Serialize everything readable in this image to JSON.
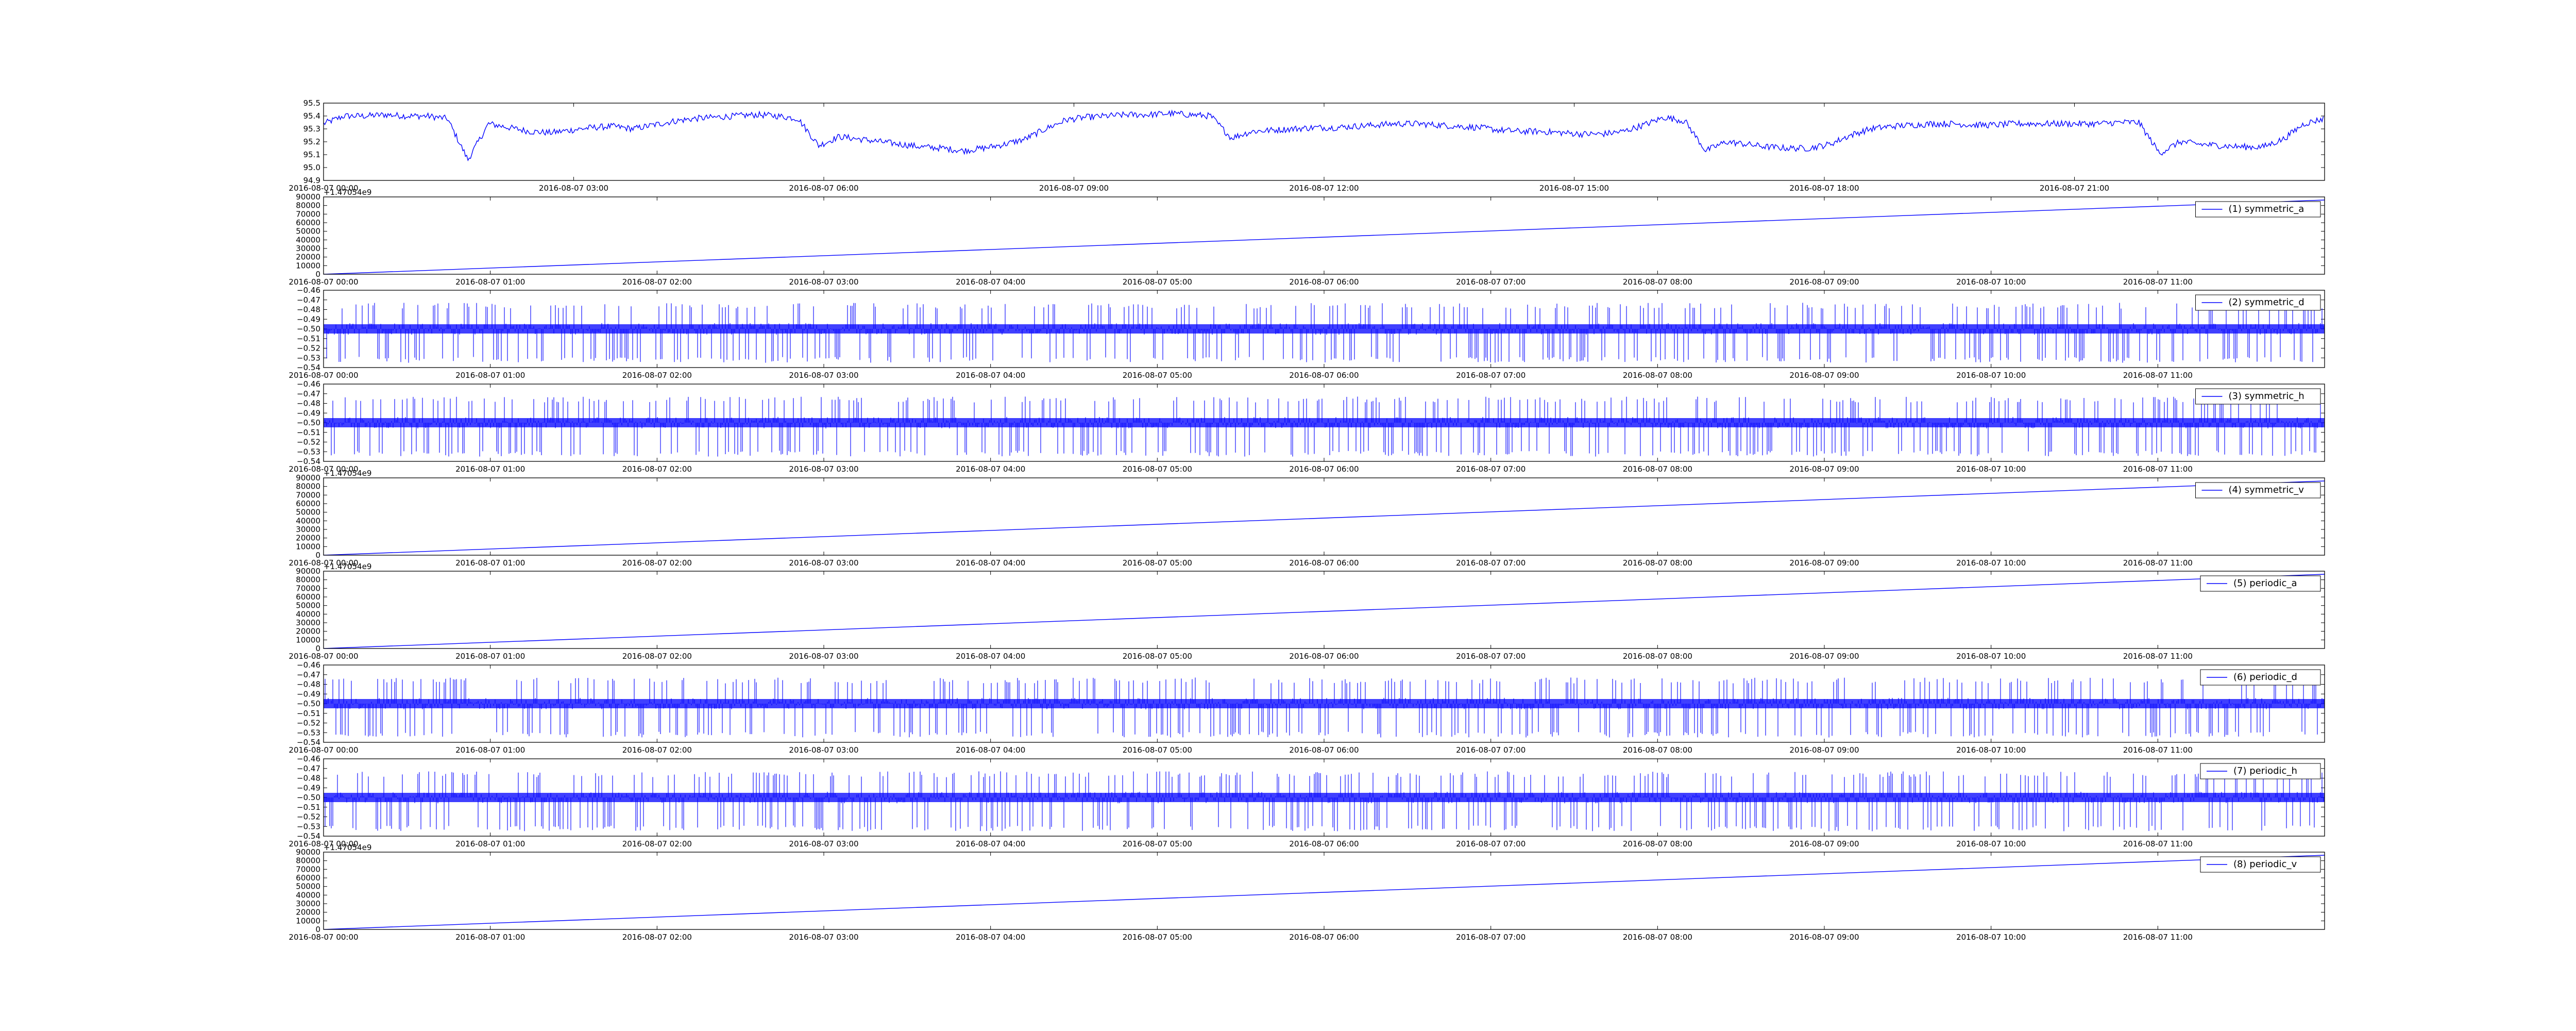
{
  "colors": {
    "line": "#0000ff",
    "axes": "#000000",
    "background": "#ffffff"
  },
  "chart_data": [
    {
      "id": "p0",
      "type": "line",
      "signal": "drift",
      "x": {
        "start": "2016-08-07 00:00",
        "end": "2016-08-08 00:00"
      },
      "xticks": [
        "2016-08-07 00:00",
        "2016-08-07 03:00",
        "2016-08-07 06:00",
        "2016-08-07 09:00",
        "2016-08-07 12:00",
        "2016-08-07 15:00",
        "2016-08-07 18:00",
        "2016-08-07 21:00"
      ],
      "ylim": [
        94.9,
        95.5
      ],
      "yticks": [
        "94.9",
        "95.0",
        "95.1",
        "95.2",
        "95.3",
        "95.4",
        "95.5"
      ],
      "offset_text": "",
      "legend": "",
      "series": [
        {
          "values": [
            95.34,
            95.4,
            95.4,
            95.41,
            95.4,
            95.4,
            95.38,
            95.06,
            95.34,
            95.31,
            95.28,
            95.27,
            95.29,
            95.31,
            95.32,
            95.3,
            95.33,
            95.36,
            95.38,
            95.39,
            95.4,
            95.41,
            95.4,
            95.38,
            95.17,
            95.24,
            95.22,
            95.2,
            95.18,
            95.16,
            95.15,
            95.13,
            95.15,
            95.18,
            95.22,
            95.3,
            95.37,
            95.39,
            95.4,
            95.41,
            95.41,
            95.42,
            95.41,
            95.4,
            95.23,
            95.28,
            95.29,
            95.3,
            95.31,
            95.31,
            95.32,
            95.33,
            95.34,
            95.34,
            95.33,
            95.32,
            95.31,
            95.29,
            95.28,
            95.28,
            95.27,
            95.26,
            95.26,
            95.28,
            95.33,
            95.39,
            95.36,
            95.13,
            95.2,
            95.18,
            95.16,
            95.15,
            95.15,
            95.18,
            95.25,
            95.3,
            95.32,
            95.33,
            95.34,
            95.34,
            95.33,
            95.33,
            95.34,
            95.34,
            95.34,
            95.34,
            95.34,
            95.35,
            95.35,
            95.11,
            95.2,
            95.18,
            95.17,
            95.16,
            95.16,
            95.22,
            95.34,
            95.38
          ]
        }
      ]
    },
    {
      "id": "p1",
      "type": "line",
      "signal": "ramp",
      "x": {
        "start": "2016-08-07 00:00",
        "end": "2016-08-07 12:00"
      },
      "xticks": [
        "2016-08-07 00:00",
        "2016-08-07 01:00",
        "2016-08-07 02:00",
        "2016-08-07 03:00",
        "2016-08-07 04:00",
        "2016-08-07 05:00",
        "2016-08-07 06:00",
        "2016-08-07 07:00",
        "2016-08-07 08:00",
        "2016-08-07 09:00",
        "2016-08-07 10:00",
        "2016-08-07 11:00"
      ],
      "ylim": [
        0,
        90000
      ],
      "yticks": [
        "0",
        "10000",
        "20000",
        "30000",
        "40000",
        "50000",
        "60000",
        "70000",
        "80000",
        "90000"
      ],
      "offset_text": "+1.47054e9",
      "legend": "(1) symmetric_a",
      "series": [
        {
          "values": [
            0,
            86400
          ]
        }
      ]
    },
    {
      "id": "p2",
      "type": "line",
      "signal": "spikes",
      "x": {
        "start": "2016-08-07 00:00",
        "end": "2016-08-07 12:00"
      },
      "xticks": [
        "2016-08-07 00:00",
        "2016-08-07 01:00",
        "2016-08-07 02:00",
        "2016-08-07 03:00",
        "2016-08-07 04:00",
        "2016-08-07 05:00",
        "2016-08-07 06:00",
        "2016-08-07 07:00",
        "2016-08-07 08:00",
        "2016-08-07 09:00",
        "2016-08-07 10:00",
        "2016-08-07 11:00"
      ],
      "ylim": [
        -0.54,
        -0.46
      ],
      "yticks": [
        "−0.54",
        "−0.53",
        "−0.52",
        "−0.51",
        "−0.50",
        "−0.49",
        "−0.48",
        "−0.47",
        "−0.46"
      ],
      "offset_text": "",
      "legend": "(2) symmetric_d",
      "series": [
        {
          "baseline": -0.5,
          "low": -0.535,
          "high": -0.473
        }
      ]
    },
    {
      "id": "p3",
      "type": "line",
      "signal": "spikes",
      "x": {
        "start": "2016-08-07 00:00",
        "end": "2016-08-07 12:00"
      },
      "xticks": [
        "2016-08-07 00:00",
        "2016-08-07 01:00",
        "2016-08-07 02:00",
        "2016-08-07 03:00",
        "2016-08-07 04:00",
        "2016-08-07 05:00",
        "2016-08-07 06:00",
        "2016-08-07 07:00",
        "2016-08-07 08:00",
        "2016-08-07 09:00",
        "2016-08-07 10:00",
        "2016-08-07 11:00"
      ],
      "ylim": [
        -0.54,
        -0.46
      ],
      "yticks": [
        "−0.54",
        "−0.53",
        "−0.52",
        "−0.51",
        "−0.50",
        "−0.49",
        "−0.48",
        "−0.47",
        "−0.46"
      ],
      "offset_text": "",
      "legend": "(3) symmetric_h",
      "series": [
        {
          "baseline": -0.5,
          "low": -0.535,
          "high": -0.473
        }
      ]
    },
    {
      "id": "p4",
      "type": "line",
      "signal": "ramp",
      "x": {
        "start": "2016-08-07 00:00",
        "end": "2016-08-07 12:00"
      },
      "xticks": [
        "2016-08-07 00:00",
        "2016-08-07 01:00",
        "2016-08-07 02:00",
        "2016-08-07 03:00",
        "2016-08-07 04:00",
        "2016-08-07 05:00",
        "2016-08-07 06:00",
        "2016-08-07 07:00",
        "2016-08-07 08:00",
        "2016-08-07 09:00",
        "2016-08-07 10:00",
        "2016-08-07 11:00"
      ],
      "ylim": [
        0,
        90000
      ],
      "yticks": [
        "0",
        "10000",
        "20000",
        "30000",
        "40000",
        "50000",
        "60000",
        "70000",
        "80000",
        "90000"
      ],
      "offset_text": "+1.47054e9",
      "legend": "(4) symmetric_v",
      "series": [
        {
          "values": [
            0,
            86400
          ]
        }
      ]
    },
    {
      "id": "p5",
      "type": "line",
      "signal": "ramp",
      "x": {
        "start": "2016-08-07 00:00",
        "end": "2016-08-07 12:00"
      },
      "xticks": [
        "2016-08-07 00:00",
        "2016-08-07 01:00",
        "2016-08-07 02:00",
        "2016-08-07 03:00",
        "2016-08-07 04:00",
        "2016-08-07 05:00",
        "2016-08-07 06:00",
        "2016-08-07 07:00",
        "2016-08-07 08:00",
        "2016-08-07 09:00",
        "2016-08-07 10:00",
        "2016-08-07 11:00"
      ],
      "ylim": [
        0,
        90000
      ],
      "yticks": [
        "0",
        "10000",
        "20000",
        "30000",
        "40000",
        "50000",
        "60000",
        "70000",
        "80000",
        "90000"
      ],
      "offset_text": "+1.47054e9",
      "legend": "(5) periodic_a",
      "series": [
        {
          "values": [
            0,
            86400
          ]
        }
      ]
    },
    {
      "id": "p6",
      "type": "line",
      "signal": "spikes",
      "x": {
        "start": "2016-08-07 00:00",
        "end": "2016-08-07 12:00"
      },
      "xticks": [
        "2016-08-07 00:00",
        "2016-08-07 01:00",
        "2016-08-07 02:00",
        "2016-08-07 03:00",
        "2016-08-07 04:00",
        "2016-08-07 05:00",
        "2016-08-07 06:00",
        "2016-08-07 07:00",
        "2016-08-07 08:00",
        "2016-08-07 09:00",
        "2016-08-07 10:00",
        "2016-08-07 11:00"
      ],
      "ylim": [
        -0.54,
        -0.46
      ],
      "yticks": [
        "−0.54",
        "−0.53",
        "−0.52",
        "−0.51",
        "−0.50",
        "−0.49",
        "−0.48",
        "−0.47",
        "−0.46"
      ],
      "offset_text": "",
      "legend": "(6) periodic_d",
      "series": [
        {
          "baseline": -0.5,
          "low": -0.535,
          "high": -0.473
        }
      ]
    },
    {
      "id": "p7",
      "type": "line",
      "signal": "spikes",
      "x": {
        "start": "2016-08-07 00:00",
        "end": "2016-08-07 12:00"
      },
      "xticks": [
        "2016-08-07 00:00",
        "2016-08-07 01:00",
        "2016-08-07 02:00",
        "2016-08-07 03:00",
        "2016-08-07 04:00",
        "2016-08-07 05:00",
        "2016-08-07 06:00",
        "2016-08-07 07:00",
        "2016-08-07 08:00",
        "2016-08-07 09:00",
        "2016-08-07 10:00",
        "2016-08-07 11:00"
      ],
      "ylim": [
        -0.54,
        -0.46
      ],
      "yticks": [
        "−0.54",
        "−0.53",
        "−0.52",
        "−0.51",
        "−0.50",
        "−0.49",
        "−0.48",
        "−0.47",
        "−0.46"
      ],
      "offset_text": "",
      "legend": "(7) periodic_h",
      "series": [
        {
          "baseline": -0.5,
          "low": -0.535,
          "high": -0.473
        }
      ]
    },
    {
      "id": "p8",
      "type": "line",
      "signal": "ramp",
      "x": {
        "start": "2016-08-07 00:00",
        "end": "2016-08-07 12:00"
      },
      "xticks": [
        "2016-08-07 00:00",
        "2016-08-07 01:00",
        "2016-08-07 02:00",
        "2016-08-07 03:00",
        "2016-08-07 04:00",
        "2016-08-07 05:00",
        "2016-08-07 06:00",
        "2016-08-07 07:00",
        "2016-08-07 08:00",
        "2016-08-07 09:00",
        "2016-08-07 10:00",
        "2016-08-07 11:00"
      ],
      "ylim": [
        0,
        90000
      ],
      "yticks": [
        "0",
        "10000",
        "20000",
        "30000",
        "40000",
        "50000",
        "60000",
        "70000",
        "80000",
        "90000"
      ],
      "offset_text": "+1.47054e9",
      "legend": "(8) periodic_v",
      "series": [
        {
          "values": [
            0,
            86400
          ]
        }
      ]
    }
  ]
}
